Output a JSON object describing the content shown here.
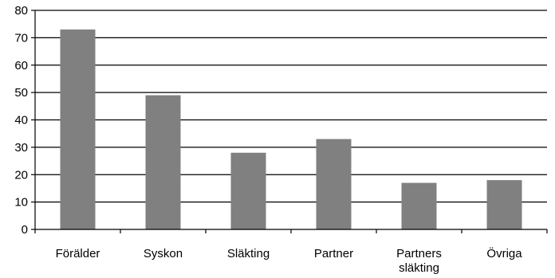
{
  "chart_data": {
    "type": "bar",
    "title": "",
    "xlabel": "",
    "ylabel": "",
    "ylim": [
      0,
      80
    ],
    "yticks": [
      "0",
      "10",
      "20",
      "30",
      "40",
      "50",
      "60",
      "70",
      "80"
    ],
    "grid": true,
    "legend": "none",
    "categories": [
      [
        "Förälder"
      ],
      [
        "Syskon"
      ],
      [
        "Släkting"
      ],
      [
        "Partner"
      ],
      [
        "Partners",
        "släkting"
      ],
      [
        "Övriga"
      ]
    ],
    "values": [
      73,
      49,
      28,
      33,
      17,
      18
    ],
    "colors": {
      "bar": "#808080",
      "grid": "#000000",
      "axis": "#000000",
      "text": "#000000"
    }
  }
}
